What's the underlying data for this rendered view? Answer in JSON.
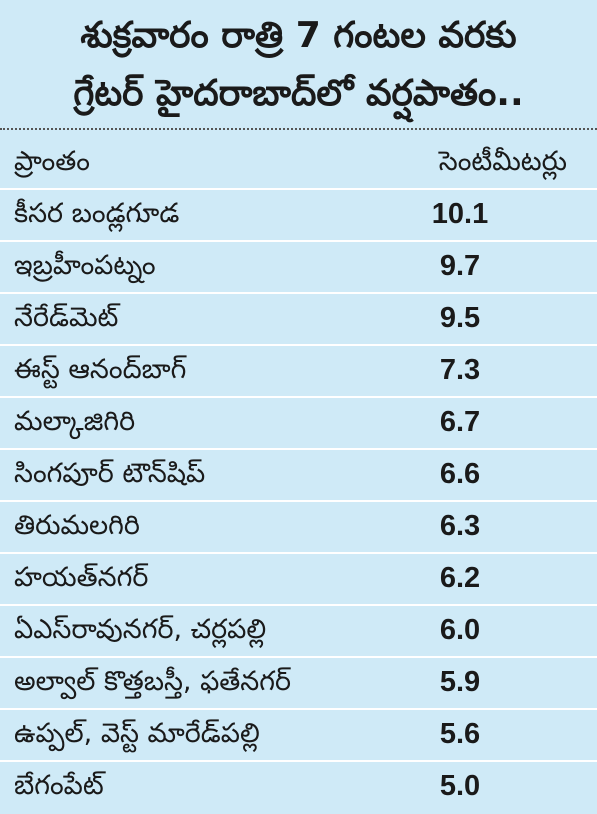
{
  "title": {
    "line1": "శుక్రవారం రాత్రి 7 గంటల వరకు",
    "line2": "గ్రేటర్ హైదరాబాద్‌లో వర్షపాతం.."
  },
  "table": {
    "header": {
      "area": "ప్రాంతం",
      "unit": "సెంటీమీటర్లు"
    },
    "rows": [
      {
        "area": "కీసర బండ్లగూడ",
        "value": "10.1"
      },
      {
        "area": "ఇబ్రహీంపట్నం",
        "value": "9.7"
      },
      {
        "area": "నేరేడ్‌మెట్",
        "value": "9.5"
      },
      {
        "area": "ఈస్ట్ ఆనంద్‌బాగ్",
        "value": "7.3"
      },
      {
        "area": "మల్కాజిగిరి",
        "value": "6.7"
      },
      {
        "area": "సింగపూర్ టౌన్‌షిప్",
        "value": "6.6"
      },
      {
        "area": "తిరుమలగిరి",
        "value": "6.3"
      },
      {
        "area": "హయత్‌నగర్",
        "value": "6.2"
      },
      {
        "area": "ఏఎస్‌రావునగర్, చర్లపల్లి",
        "value": "6.0"
      },
      {
        "area": "అల్వాల్ కొత్తబస్తీ, ఫతేనగర్",
        "value": "5.9"
      },
      {
        "area": "ఉప్పల్, వెస్ట్ మారేడ్‌పల్లి",
        "value": "5.6"
      },
      {
        "area": "బేగంపేట్",
        "value": "5.0"
      }
    ]
  },
  "colors": {
    "background": "#cfeaf7",
    "row_divider": "#ffffff",
    "text": "#1a1a1a"
  }
}
